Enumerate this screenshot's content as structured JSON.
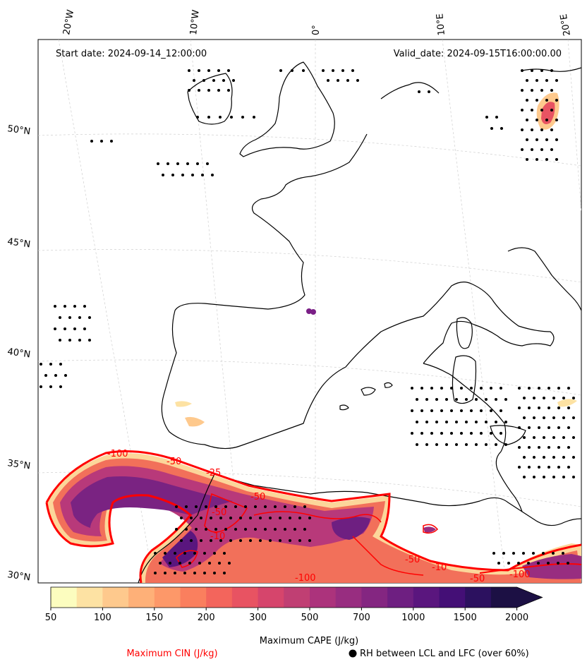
{
  "map": {
    "start_date": "Start date: 2024-09-14_12:00:00",
    "valid_date": "Valid_date: 2024-09-15T16:00:00.00",
    "lon_labels": [
      "20°W",
      "10°W",
      "0°",
      "10°E",
      "20°E"
    ],
    "lat_labels": [
      "50°N",
      "45°N",
      "40°N",
      "35°N",
      "30°N"
    ]
  },
  "contour_labels": [
    "-100",
    "-50",
    "-25",
    "-50",
    "-50",
    "-10",
    "-100",
    "-50",
    "-10",
    "-50",
    "-100"
  ],
  "colorbar": {
    "title": "Maximum CAPE (J/kg)",
    "ticks": [
      "50",
      "100",
      "150",
      "200",
      "300",
      "500",
      "700",
      "1000",
      "1500",
      "2000"
    ],
    "colors": [
      "#fcfdbf",
      "#fde2a3",
      "#fec98d",
      "#feb078",
      "#fd9869",
      "#fa7f5e",
      "#f3655c",
      "#e85362",
      "#d6456c",
      "#c03f73",
      "#ac337c",
      "#982d80",
      "#842681",
      "#6e1f81",
      "#5a167e",
      "#440f76",
      "#2c115f",
      "#1c1044"
    ]
  },
  "legend": {
    "cin_label": "Maximum CIN (J/kg)",
    "rh_label": "RH between LCL and LFC (over 60%)",
    "cin_color": "#ff0000"
  }
}
